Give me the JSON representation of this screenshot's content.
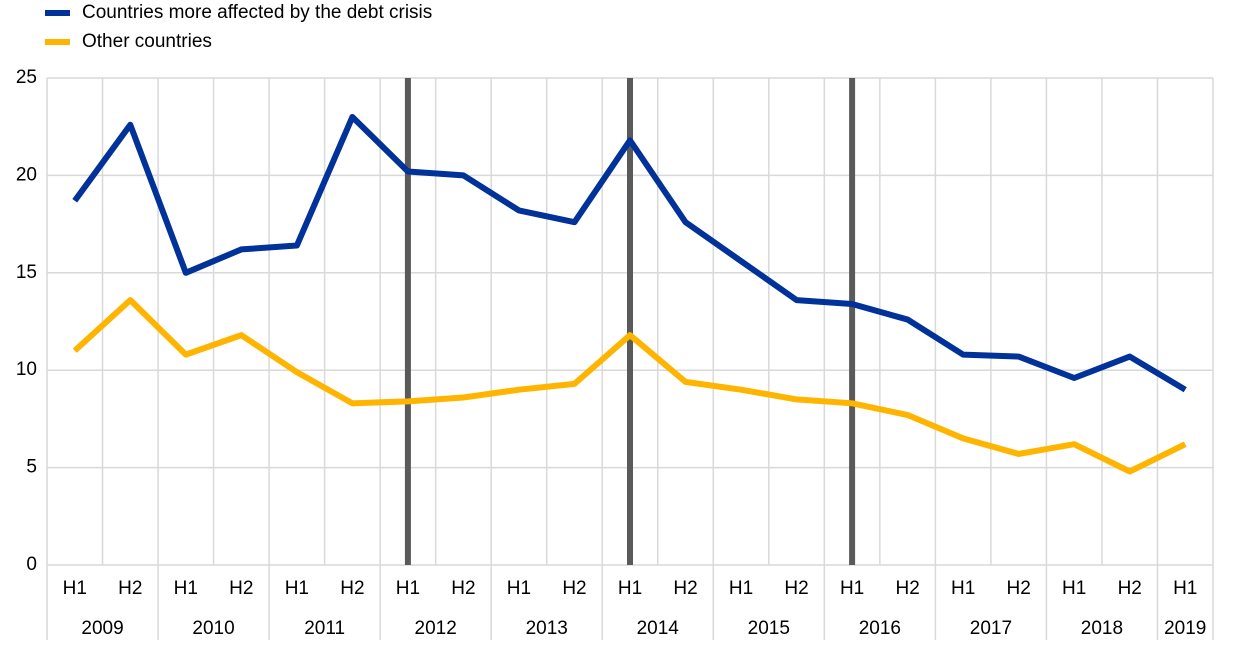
{
  "chart_data": {
    "type": "line",
    "categories": [
      "H1",
      "H2",
      "H1",
      "H2",
      "H1",
      "H2",
      "H1",
      "H2",
      "H1",
      "H2",
      "H1",
      "H2",
      "H1",
      "H2",
      "H1",
      "H2",
      "H1",
      "H2",
      "H1",
      "H2",
      "H1"
    ],
    "groups": [
      "2009",
      "2009",
      "2010",
      "2010",
      "2011",
      "2011",
      "2012",
      "2012",
      "2013",
      "2013",
      "2014",
      "2014",
      "2015",
      "2015",
      "2016",
      "2016",
      "2017",
      "2017",
      "2018",
      "2018",
      "2019"
    ],
    "series": [
      {
        "name": "Countries more affected by the debt crisis",
        "color": "#003299",
        "values": [
          18.7,
          22.6,
          15.0,
          16.2,
          16.4,
          23.0,
          20.2,
          20.0,
          18.2,
          17.6,
          21.8,
          17.6,
          15.6,
          13.6,
          13.4,
          12.6,
          10.8,
          10.7,
          9.6,
          10.7,
          9.0
        ]
      },
      {
        "name": "Other countries",
        "color": "#ffb400",
        "values": [
          11.0,
          13.6,
          10.8,
          11.8,
          9.9,
          8.3,
          8.4,
          8.6,
          9.0,
          9.3,
          11.8,
          9.4,
          9.0,
          8.5,
          8.3,
          7.7,
          6.5,
          5.7,
          6.2,
          4.8,
          6.2
        ]
      }
    ],
    "vlines": [
      6,
      10,
      14
    ],
    "vline_color": "#5a5a5a",
    "ylim": [
      0,
      25
    ],
    "yticks": [
      0,
      5,
      10,
      15,
      20,
      25
    ],
    "grid": true,
    "legend": "top-left"
  }
}
